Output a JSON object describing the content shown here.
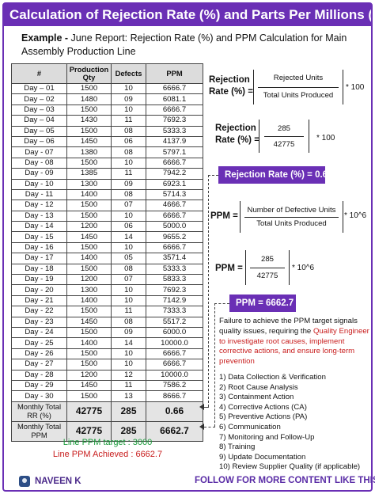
{
  "title": "Calculation of Rejection Rate (%) and Parts Per Millions (PPM)",
  "intro": {
    "label": "Example -",
    "text": "June Report: Rejection Rate (%) and PPM Calculation for Main Assembly Production Line"
  },
  "table": {
    "headers": [
      "#",
      "Production Qty",
      "Defects",
      "PPM"
    ],
    "rows": [
      [
        "Day – 01",
        "1500",
        "10",
        "6666.7"
      ],
      [
        "Day – 02",
        "1480",
        "09",
        "6081.1"
      ],
      [
        "Day – 03",
        "1500",
        "10",
        "6666.7"
      ],
      [
        "Day – 04",
        "1430",
        "11",
        "7692.3"
      ],
      [
        "Day – 05",
        "1500",
        "08",
        "5333.3"
      ],
      [
        "Day – 06",
        "1450",
        "06",
        "4137.9"
      ],
      [
        "Day - 07",
        "1380",
        "08",
        "5797.1"
      ],
      [
        "Day - 08",
        "1500",
        "10",
        "6666.7"
      ],
      [
        "Day - 09",
        "1385",
        "11",
        "7942.2"
      ],
      [
        "Day - 10",
        "1300",
        "09",
        "6923.1"
      ],
      [
        "Day - 11",
        "1400",
        "08",
        "5714.3"
      ],
      [
        "Day - 12",
        "1500",
        "07",
        "4666.7"
      ],
      [
        "Day - 13",
        "1500",
        "10",
        "6666.7"
      ],
      [
        "Day - 14",
        "1200",
        "06",
        "5000.0"
      ],
      [
        "Day - 15",
        "1450",
        "14",
        "9655.2"
      ],
      [
        "Day - 16",
        "1500",
        "10",
        "6666.7"
      ],
      [
        "Day - 17",
        "1400",
        "05",
        "3571.4"
      ],
      [
        "Day - 18",
        "1500",
        "08",
        "5333.3"
      ],
      [
        "Day - 19",
        "1200",
        "07",
        "5833.3"
      ],
      [
        "Day - 20",
        "1300",
        "10",
        "7692.3"
      ],
      [
        "Day - 21",
        "1400",
        "10",
        "7142.9"
      ],
      [
        "Day - 22",
        "1500",
        "11",
        "7333.3"
      ],
      [
        "Day - 23",
        "1450",
        "08",
        "5517.2"
      ],
      [
        "Day - 24",
        "1500",
        "09",
        "6000.0"
      ],
      [
        "Day - 25",
        "1400",
        "14",
        "10000.0"
      ],
      [
        "Day - 26",
        "1500",
        "10",
        "6666.7"
      ],
      [
        "Day - 27",
        "1500",
        "10",
        "6666.7"
      ],
      [
        "Day - 28",
        "1200",
        "12",
        "10000.0"
      ],
      [
        "Day - 29",
        "1450",
        "11",
        "7586.2"
      ],
      [
        "Day - 30",
        "1500",
        "13",
        "8666.7"
      ]
    ],
    "total_rr": [
      "Monthly Total RR (%)",
      "42775",
      "285",
      "0.66"
    ],
    "total_ppm": [
      "Monthly Total PPM",
      "42775",
      "285",
      "6662.7"
    ]
  },
  "targets": {
    "target": "Line PPM target :  3000",
    "achieved": "Line PPM Achieved : 6662.7"
  },
  "formulas": {
    "rr_label": "Rejection Rate (%) =",
    "rr_num": "Rejected Units",
    "rr_den": "Total Units Produced",
    "rr_mult": "* 100",
    "rr2_label": "Rejection Rate (%) =",
    "rr2_num": "285",
    "rr2_den": "42775",
    "rr2_mult": "* 100",
    "rr_result": "Rejection Rate (%) = 0.66",
    "ppm_label": "PPM =",
    "ppm_num": "Number of Defective Units",
    "ppm_den": "Total Units Produced",
    "ppm_mult": "* 10^6",
    "ppm2_label": "PPM =",
    "ppm2_num": "285",
    "ppm2_den": "42775",
    "ppm2_mult": "* 10^6",
    "ppm_result": "PPM =     6662.7"
  },
  "note": {
    "text": "Failure to achieve the PPM target signals quality issues, requiring the",
    "highlight": "Quality Engineer to investigate root causes, implement corrective actions, and ensure long-term prevention"
  },
  "steps": [
    "1)  Data Collection & Verification",
    "2)  Root Cause Analysis",
    "3)  Containment Action",
    "4)  Corrective Actions (CA)",
    "5)  Preventive Actions (PA)",
    "6)  Communication",
    "7)  Monitoring and Follow-Up",
    "8)  Training",
    "9)  Update Documentation",
    "10) Review Supplier Quality (if applicable)"
  ],
  "footer": {
    "author": "NAVEEN K",
    "follow": "FOLLOW FOR MORE CONTENT LIKE THIS"
  },
  "colors": {
    "accent": "#6a2fb5",
    "green": "#1a9a3a",
    "red": "#c81c1c"
  }
}
